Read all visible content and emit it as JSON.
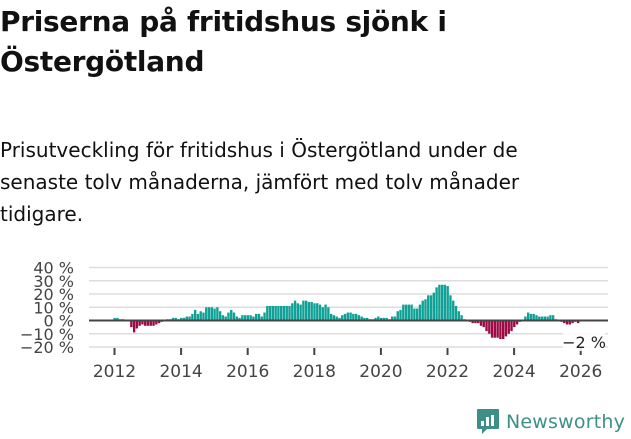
{
  "header": {
    "title": "Priserna på fritidshus sjönk i Östergötland",
    "subtitle": "Prisutveckling för fritidshus i Östergötland under de senaste tolv månaderna, jämfört med tolv månader tidigare."
  },
  "brand": {
    "name": "Newsworthy",
    "icon": "bar-chart-speech-bubble-icon",
    "color": "#3f8f89"
  },
  "colors": {
    "positive": "#0fa195",
    "negative": "#9b0a45",
    "gridline": "#dddddd",
    "zero_line": "#444444",
    "axis_text": "#444444"
  },
  "chart_data": {
    "type": "bar",
    "title": "Priserna på fritidshus sjönk i Östergötland",
    "subtitle": "Prisutveckling för fritidshus i Östergötland under de senaste tolv månaderna, jämfört med tolv månader tidigare.",
    "xlabel": "",
    "ylabel": "",
    "ylim": [
      -20,
      40
    ],
    "yticks": [
      -20,
      -10,
      0,
      10,
      20,
      30,
      40
    ],
    "ytick_labels": [
      "−20 %",
      "−10 %",
      "0 %",
      "10 %",
      "20 %",
      "30 %",
      "40 %"
    ],
    "xticks": [
      "2012",
      "2014",
      "2016",
      "2018",
      "2020",
      "2022",
      "2024",
      "2026"
    ],
    "grid": true,
    "legend": "none",
    "annotation": {
      "text": "−2 %",
      "label": "last value"
    },
    "start": "2012-01",
    "frequency": "monthly",
    "values": [
      2,
      2,
      1,
      1,
      null,
      null,
      -5,
      -9,
      -6,
      -4,
      -3,
      -4,
      -4,
      -4,
      -4,
      -3,
      -2,
      -1,
      0,
      1,
      1,
      2,
      2,
      1,
      2,
      2,
      3,
      3,
      5,
      8,
      5,
      7,
      6,
      10,
      10,
      10,
      9,
      10,
      7,
      4,
      3,
      6,
      8,
      6,
      3,
      2,
      4,
      4,
      4,
      4,
      3,
      5,
      5,
      3,
      6,
      11,
      11,
      11,
      11,
      11,
      11,
      11,
      11,
      11,
      13,
      15,
      13,
      12,
      15,
      15,
      14,
      14,
      13,
      13,
      12,
      10,
      12,
      10,
      5,
      4,
      3,
      2,
      4,
      5,
      6,
      6,
      5,
      5,
      4,
      3,
      2,
      2,
      1,
      1,
      2,
      3,
      2,
      2,
      2,
      1,
      3,
      3,
      7,
      8,
      12,
      12,
      12,
      12,
      9,
      9,
      12,
      15,
      16,
      19,
      19,
      21,
      25,
      27,
      27,
      27,
      26,
      19,
      15,
      11,
      7,
      4,
      1,
      0,
      -1,
      -2,
      -2,
      -2,
      -4,
      -5,
      -8,
      -10,
      -13,
      -13,
      -13,
      -14,
      -14,
      -12,
      -10,
      -8,
      -5,
      -3,
      -1,
      0,
      3,
      6,
      5,
      5,
      4,
      3,
      3,
      3,
      3,
      4,
      4,
      1,
      0,
      -1,
      -2,
      -3,
      -3,
      -2,
      -1,
      -2
    ],
    "last_value": -2
  }
}
